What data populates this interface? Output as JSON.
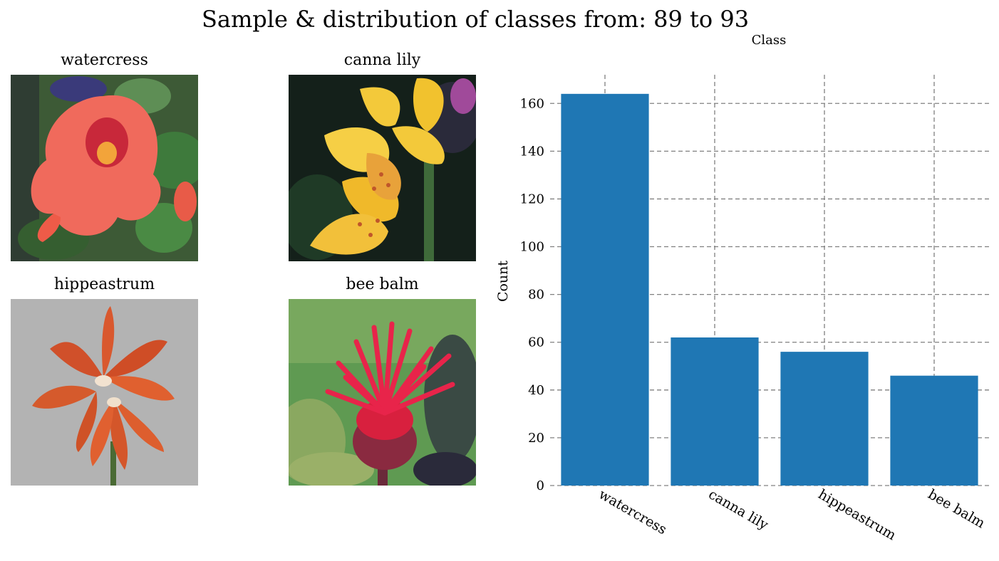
{
  "figure": {
    "title": "Sample & distribution of classes from: 89 to 93"
  },
  "samples": [
    {
      "label": "watercress",
      "icon": "nasturtium-flower-photo"
    },
    {
      "label": "canna lily",
      "icon": "canna-lily-flower-photo"
    },
    {
      "label": "hippeastrum",
      "icon": "hippeastrum-flower-photo"
    },
    {
      "label": "bee balm",
      "icon": "bee-balm-flower-photo"
    }
  ],
  "chart_data": {
    "type": "bar",
    "title": "Class",
    "xlabel": "",
    "ylabel": "Count",
    "categories": [
      "watercress",
      "canna lily",
      "hippeastrum",
      "bee balm"
    ],
    "values": [
      164,
      62,
      56,
      46
    ],
    "ylim": [
      0,
      172
    ],
    "yticks": [
      0,
      20,
      40,
      60,
      80,
      100,
      120,
      140,
      160
    ],
    "grid": true,
    "bar_color": "#1f77b4",
    "grid_color": "#808080"
  }
}
